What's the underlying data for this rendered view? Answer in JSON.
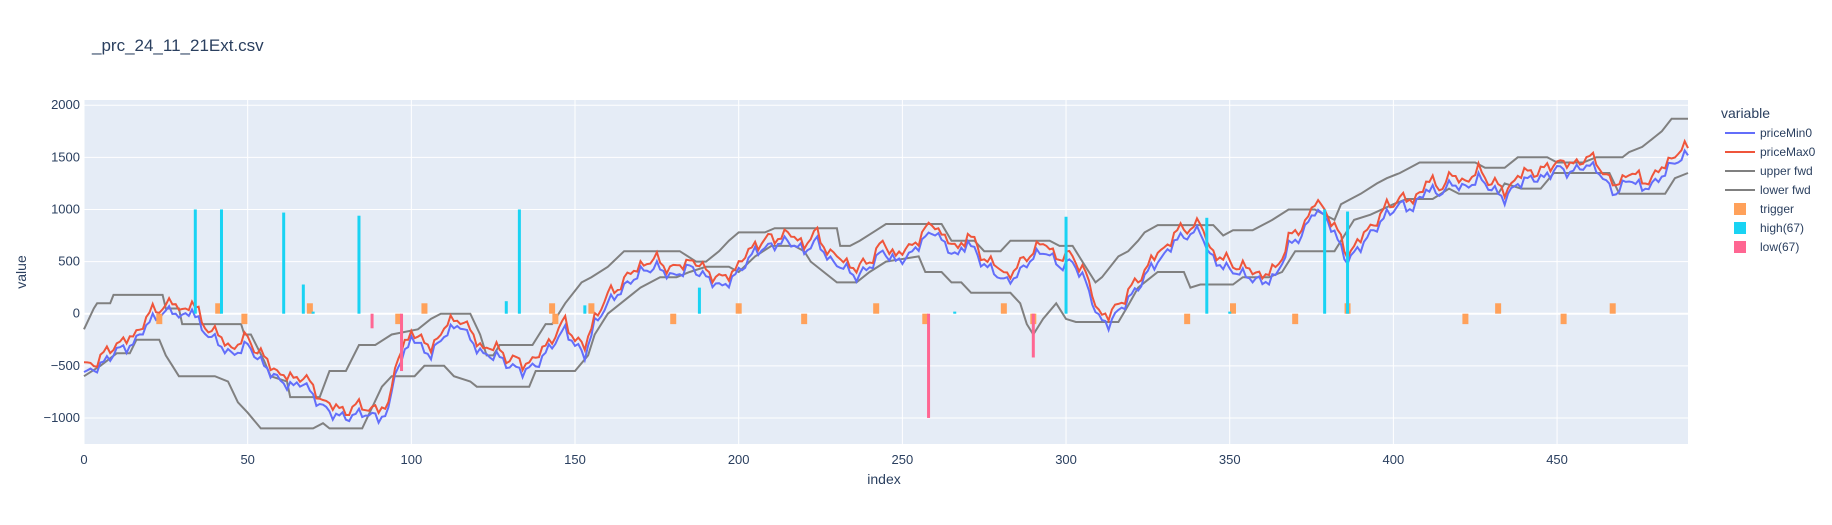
{
  "chart_data": {
    "type": "line",
    "title": "_prc_24_11_21Ext.csv",
    "xlabel": "index",
    "ylabel": "value",
    "xlim": [
      0,
      490
    ],
    "ylim": [
      -1250,
      2050
    ],
    "xticks": [
      0,
      50,
      100,
      150,
      200,
      250,
      300,
      350,
      400,
      450
    ],
    "xtick_labels": [
      "0",
      "50",
      "100",
      "150",
      "200",
      "250",
      "300",
      "350",
      "400",
      "450"
    ],
    "yticks": [
      -1000,
      -500,
      0,
      500,
      1000,
      1500,
      2000
    ],
    "ytick_labels": [
      "−1000",
      "−500",
      "0",
      "500",
      "1000",
      "1500",
      "2000"
    ],
    "grid": true,
    "legend_title": "variable",
    "legend_placement": "right",
    "line_knots": [
      [
        0,
        -580
      ],
      [
        5,
        -500
      ],
      [
        10,
        -350
      ],
      [
        15,
        -300
      ],
      [
        18,
        -150
      ],
      [
        21,
        -50
      ],
      [
        24,
        0
      ],
      [
        27,
        40
      ],
      [
        30,
        -50
      ],
      [
        33,
        50
      ],
      [
        36,
        -150
      ],
      [
        40,
        -250
      ],
      [
        45,
        -400
      ],
      [
        50,
        -300
      ],
      [
        55,
        -500
      ],
      [
        60,
        -650
      ],
      [
        64,
        -700
      ],
      [
        67,
        -650
      ],
      [
        70,
        -800
      ],
      [
        75,
        -950
      ],
      [
        80,
        -1000
      ],
      [
        85,
        -950
      ],
      [
        90,
        -1000
      ],
      [
        93,
        -950
      ],
      [
        95,
        -550
      ],
      [
        98,
        -400
      ],
      [
        100,
        -200
      ],
      [
        102,
        -300
      ],
      [
        106,
        -400
      ],
      [
        110,
        -200
      ],
      [
        115,
        -100
      ],
      [
        118,
        -250
      ],
      [
        122,
        -400
      ],
      [
        126,
        -400
      ],
      [
        130,
        -500
      ],
      [
        134,
        -550
      ],
      [
        138,
        -500
      ],
      [
        143,
        -300
      ],
      [
        147,
        -150
      ],
      [
        150,
        -300
      ],
      [
        153,
        -400
      ],
      [
        156,
        -100
      ],
      [
        160,
        100
      ],
      [
        165,
        250
      ],
      [
        170,
        400
      ],
      [
        175,
        450
      ],
      [
        180,
        350
      ],
      [
        185,
        450
      ],
      [
        190,
        350
      ],
      [
        195,
        250
      ],
      [
        200,
        400
      ],
      [
        205,
        600
      ],
      [
        210,
        650
      ],
      [
        215,
        700
      ],
      [
        220,
        600
      ],
      [
        224,
        700
      ],
      [
        228,
        500
      ],
      [
        232,
        450
      ],
      [
        236,
        350
      ],
      [
        240,
        450
      ],
      [
        244,
        600
      ],
      [
        248,
        500
      ],
      [
        252,
        550
      ],
      [
        256,
        700
      ],
      [
        260,
        800
      ],
      [
        263,
        650
      ],
      [
        267,
        550
      ],
      [
        270,
        700
      ],
      [
        274,
        500
      ],
      [
        278,
        400
      ],
      [
        282,
        300
      ],
      [
        286,
        400
      ],
      [
        290,
        550
      ],
      [
        294,
        600
      ],
      [
        298,
        450
      ],
      [
        302,
        500
      ],
      [
        306,
        300
      ],
      [
        310,
        -50
      ],
      [
        313,
        -100
      ],
      [
        318,
        100
      ],
      [
        322,
        250
      ],
      [
        326,
        450
      ],
      [
        330,
        550
      ],
      [
        333,
        700
      ],
      [
        337,
        750
      ],
      [
        341,
        800
      ],
      [
        344,
        550
      ],
      [
        348,
        450
      ],
      [
        352,
        400
      ],
      [
        356,
        350
      ],
      [
        360,
        300
      ],
      [
        364,
        350
      ],
      [
        368,
        650
      ],
      [
        372,
        750
      ],
      [
        376,
        1000
      ],
      [
        380,
        900
      ],
      [
        383,
        700
      ],
      [
        386,
        500
      ],
      [
        390,
        650
      ],
      [
        394,
        800
      ],
      [
        398,
        950
      ],
      [
        402,
        1050
      ],
      [
        406,
        1000
      ],
      [
        410,
        1200
      ],
      [
        414,
        1150
      ],
      [
        418,
        1250
      ],
      [
        422,
        1200
      ],
      [
        426,
        1300
      ],
      [
        430,
        1200
      ],
      [
        434,
        1100
      ],
      [
        438,
        1250
      ],
      [
        442,
        1300
      ],
      [
        446,
        1300
      ],
      [
        450,
        1400
      ],
      [
        454,
        1350
      ],
      [
        458,
        1420
      ],
      [
        462,
        1400
      ],
      [
        465,
        1250
      ],
      [
        468,
        1150
      ],
      [
        472,
        1300
      ],
      [
        476,
        1200
      ],
      [
        480,
        1250
      ],
      [
        484,
        1400
      ],
      [
        488,
        1500
      ],
      [
        490,
        1520
      ]
    ],
    "upper_fwd": [
      [
        0,
        -150
      ],
      [
        3,
        50
      ],
      [
        4,
        100
      ],
      [
        8,
        100
      ],
      [
        9,
        180
      ],
      [
        24,
        180
      ],
      [
        25,
        50
      ],
      [
        29,
        50
      ],
      [
        30,
        -100
      ],
      [
        48,
        -100
      ],
      [
        49,
        -200
      ],
      [
        51,
        -200
      ],
      [
        55,
        -450
      ],
      [
        57,
        -600
      ],
      [
        62,
        -650
      ],
      [
        63,
        -800
      ],
      [
        72,
        -800
      ],
      [
        75,
        -550
      ],
      [
        80,
        -550
      ],
      [
        84,
        -300
      ],
      [
        89,
        -300
      ],
      [
        94,
        -200
      ],
      [
        102,
        -150
      ],
      [
        106,
        -50
      ],
      [
        109,
        0
      ],
      [
        118,
        0
      ],
      [
        121,
        -200
      ],
      [
        123,
        -400
      ],
      [
        125,
        -400
      ],
      [
        127,
        -300
      ],
      [
        131,
        -300
      ],
      [
        137,
        -300
      ],
      [
        141,
        -100
      ],
      [
        143,
        -100
      ],
      [
        147,
        100
      ],
      [
        152,
        300
      ],
      [
        155,
        350
      ],
      [
        160,
        450
      ],
      [
        165,
        600
      ],
      [
        182,
        600
      ],
      [
        187,
        500
      ],
      [
        190,
        500
      ],
      [
        194,
        600
      ],
      [
        197,
        700
      ],
      [
        200,
        780
      ],
      [
        208,
        780
      ],
      [
        211,
        820
      ],
      [
        230,
        820
      ],
      [
        231,
        650
      ],
      [
        234,
        650
      ],
      [
        237,
        700
      ],
      [
        242,
        800
      ],
      [
        245,
        860
      ],
      [
        262,
        860
      ],
      [
        265,
        700
      ],
      [
        272,
        700
      ],
      [
        275,
        600
      ],
      [
        280,
        600
      ],
      [
        283,
        700
      ],
      [
        295,
        700
      ],
      [
        298,
        650
      ],
      [
        302,
        650
      ],
      [
        305,
        500
      ],
      [
        309,
        300
      ],
      [
        311,
        350
      ],
      [
        316,
        550
      ],
      [
        319,
        600
      ],
      [
        322,
        700
      ],
      [
        324,
        780
      ],
      [
        328,
        850
      ],
      [
        345,
        850
      ],
      [
        348,
        750
      ],
      [
        351,
        800
      ],
      [
        357,
        800
      ],
      [
        363,
        900
      ],
      [
        368,
        1000
      ],
      [
        376,
        1000
      ],
      [
        379,
        950
      ],
      [
        382,
        900
      ],
      [
        384,
        1050
      ],
      [
        387,
        1100
      ],
      [
        390,
        1150
      ],
      [
        395,
        1250
      ],
      [
        398,
        1300
      ],
      [
        402,
        1350
      ],
      [
        405,
        1400
      ],
      [
        408,
        1450
      ],
      [
        425,
        1450
      ],
      [
        428,
        1400
      ],
      [
        434,
        1400
      ],
      [
        438,
        1500
      ],
      [
        447,
        1500
      ],
      [
        450,
        1450
      ],
      [
        458,
        1450
      ],
      [
        462,
        1500
      ],
      [
        470,
        1500
      ],
      [
        472,
        1550
      ],
      [
        476,
        1600
      ],
      [
        480,
        1700
      ],
      [
        482,
        1750
      ],
      [
        485,
        1870
      ],
      [
        490,
        1870
      ]
    ],
    "lower_fwd": [
      [
        0,
        -600
      ],
      [
        5,
        -500
      ],
      [
        10,
        -380
      ],
      [
        14,
        -380
      ],
      [
        16,
        -250
      ],
      [
        23,
        -250
      ],
      [
        25,
        -400
      ],
      [
        27,
        -500
      ],
      [
        29,
        -600
      ],
      [
        40,
        -600
      ],
      [
        44,
        -650
      ],
      [
        47,
        -850
      ],
      [
        50,
        -950
      ],
      [
        54,
        -1100
      ],
      [
        59,
        -1100
      ],
      [
        70,
        -1100
      ],
      [
        73,
        -1050
      ],
      [
        75,
        -1100
      ],
      [
        85,
        -1100
      ],
      [
        88,
        -900
      ],
      [
        91,
        -700
      ],
      [
        94,
        -600
      ],
      [
        101,
        -600
      ],
      [
        104,
        -500
      ],
      [
        110,
        -500
      ],
      [
        113,
        -600
      ],
      [
        118,
        -650
      ],
      [
        120,
        -700
      ],
      [
        136,
        -700
      ],
      [
        138,
        -550
      ],
      [
        150,
        -550
      ],
      [
        154,
        -400
      ],
      [
        156,
        -200
      ],
      [
        160,
        0
      ],
      [
        170,
        250
      ],
      [
        176,
        350
      ],
      [
        181,
        350
      ],
      [
        185,
        400
      ],
      [
        190,
        450
      ],
      [
        197,
        450
      ],
      [
        200,
        400
      ],
      [
        205,
        550
      ],
      [
        210,
        650
      ],
      [
        217,
        650
      ],
      [
        220,
        600
      ],
      [
        222,
        500
      ],
      [
        230,
        300
      ],
      [
        236,
        300
      ],
      [
        240,
        400
      ],
      [
        245,
        500
      ],
      [
        255,
        550
      ],
      [
        257,
        400
      ],
      [
        262,
        400
      ],
      [
        265,
        300
      ],
      [
        268,
        300
      ],
      [
        271,
        200
      ],
      [
        283,
        200
      ],
      [
        286,
        100
      ],
      [
        288,
        -100
      ],
      [
        290,
        -200
      ],
      [
        293,
        -50
      ],
      [
        297,
        100
      ],
      [
        300,
        -50
      ],
      [
        303,
        -80
      ],
      [
        316,
        -80
      ],
      [
        319,
        80
      ],
      [
        322,
        250
      ],
      [
        328,
        400
      ],
      [
        336,
        400
      ],
      [
        338,
        250
      ],
      [
        341,
        280
      ],
      [
        351,
        280
      ],
      [
        354,
        350
      ],
      [
        362,
        350
      ],
      [
        366,
        400
      ],
      [
        370,
        600
      ],
      [
        382,
        600
      ],
      [
        385,
        750
      ],
      [
        388,
        900
      ],
      [
        393,
        950
      ],
      [
        400,
        1050
      ],
      [
        404,
        1100
      ],
      [
        412,
        1100
      ],
      [
        417,
        1200
      ],
      [
        420,
        1150
      ],
      [
        432,
        1150
      ],
      [
        434,
        1250
      ],
      [
        439,
        1200
      ],
      [
        445,
        1200
      ],
      [
        449,
        1350
      ],
      [
        466,
        1350
      ],
      [
        469,
        1150
      ],
      [
        483,
        1150
      ],
      [
        486,
        1300
      ],
      [
        490,
        1350
      ]
    ],
    "series": [
      {
        "name": "priceMin0",
        "kind": "line",
        "color": "#636efa"
      },
      {
        "name": "priceMax0",
        "kind": "line",
        "color": "#ef553b"
      },
      {
        "name": "upper fwd",
        "kind": "line",
        "color": "#808080"
      },
      {
        "name": "lower fwd",
        "kind": "line",
        "color": "#808080"
      },
      {
        "name": "trigger",
        "kind": "bar",
        "color": "#ffa15a",
        "points": [
          [
            23,
            -100
          ],
          [
            41,
            100
          ],
          [
            49,
            -100
          ],
          [
            69,
            100
          ],
          [
            96,
            -100
          ],
          [
            104,
            100
          ],
          [
            143,
            100
          ],
          [
            144,
            -100
          ],
          [
            155,
            100
          ],
          [
            180,
            -100
          ],
          [
            200,
            100
          ],
          [
            220,
            -100
          ],
          [
            242,
            100
          ],
          [
            257,
            -100
          ],
          [
            281,
            100
          ],
          [
            290,
            -100
          ],
          [
            337,
            -100
          ],
          [
            351,
            100
          ],
          [
            370,
            -100
          ],
          [
            386,
            100
          ],
          [
            422,
            -100
          ],
          [
            432,
            100
          ],
          [
            452,
            -100
          ],
          [
            467,
            100
          ]
        ]
      },
      {
        "name": "high(67)",
        "kind": "bar",
        "color": "#19d3f3",
        "points": [
          [
            34,
            1000
          ],
          [
            42,
            1000
          ],
          [
            61,
            970
          ],
          [
            67,
            280
          ],
          [
            70,
            20
          ],
          [
            84,
            940
          ],
          [
            129,
            120
          ],
          [
            133,
            1000
          ],
          [
            153,
            80
          ],
          [
            188,
            250
          ],
          [
            266,
            20
          ],
          [
            300,
            930
          ],
          [
            343,
            920
          ],
          [
            350,
            20
          ],
          [
            379,
            1000
          ],
          [
            386,
            980
          ]
        ]
      },
      {
        "name": "low(67)",
        "kind": "bar",
        "color": "#ff6692",
        "points": [
          [
            88,
            -140
          ],
          [
            97,
            -550
          ],
          [
            258,
            -1000
          ],
          [
            290,
            -420
          ]
        ]
      }
    ]
  }
}
